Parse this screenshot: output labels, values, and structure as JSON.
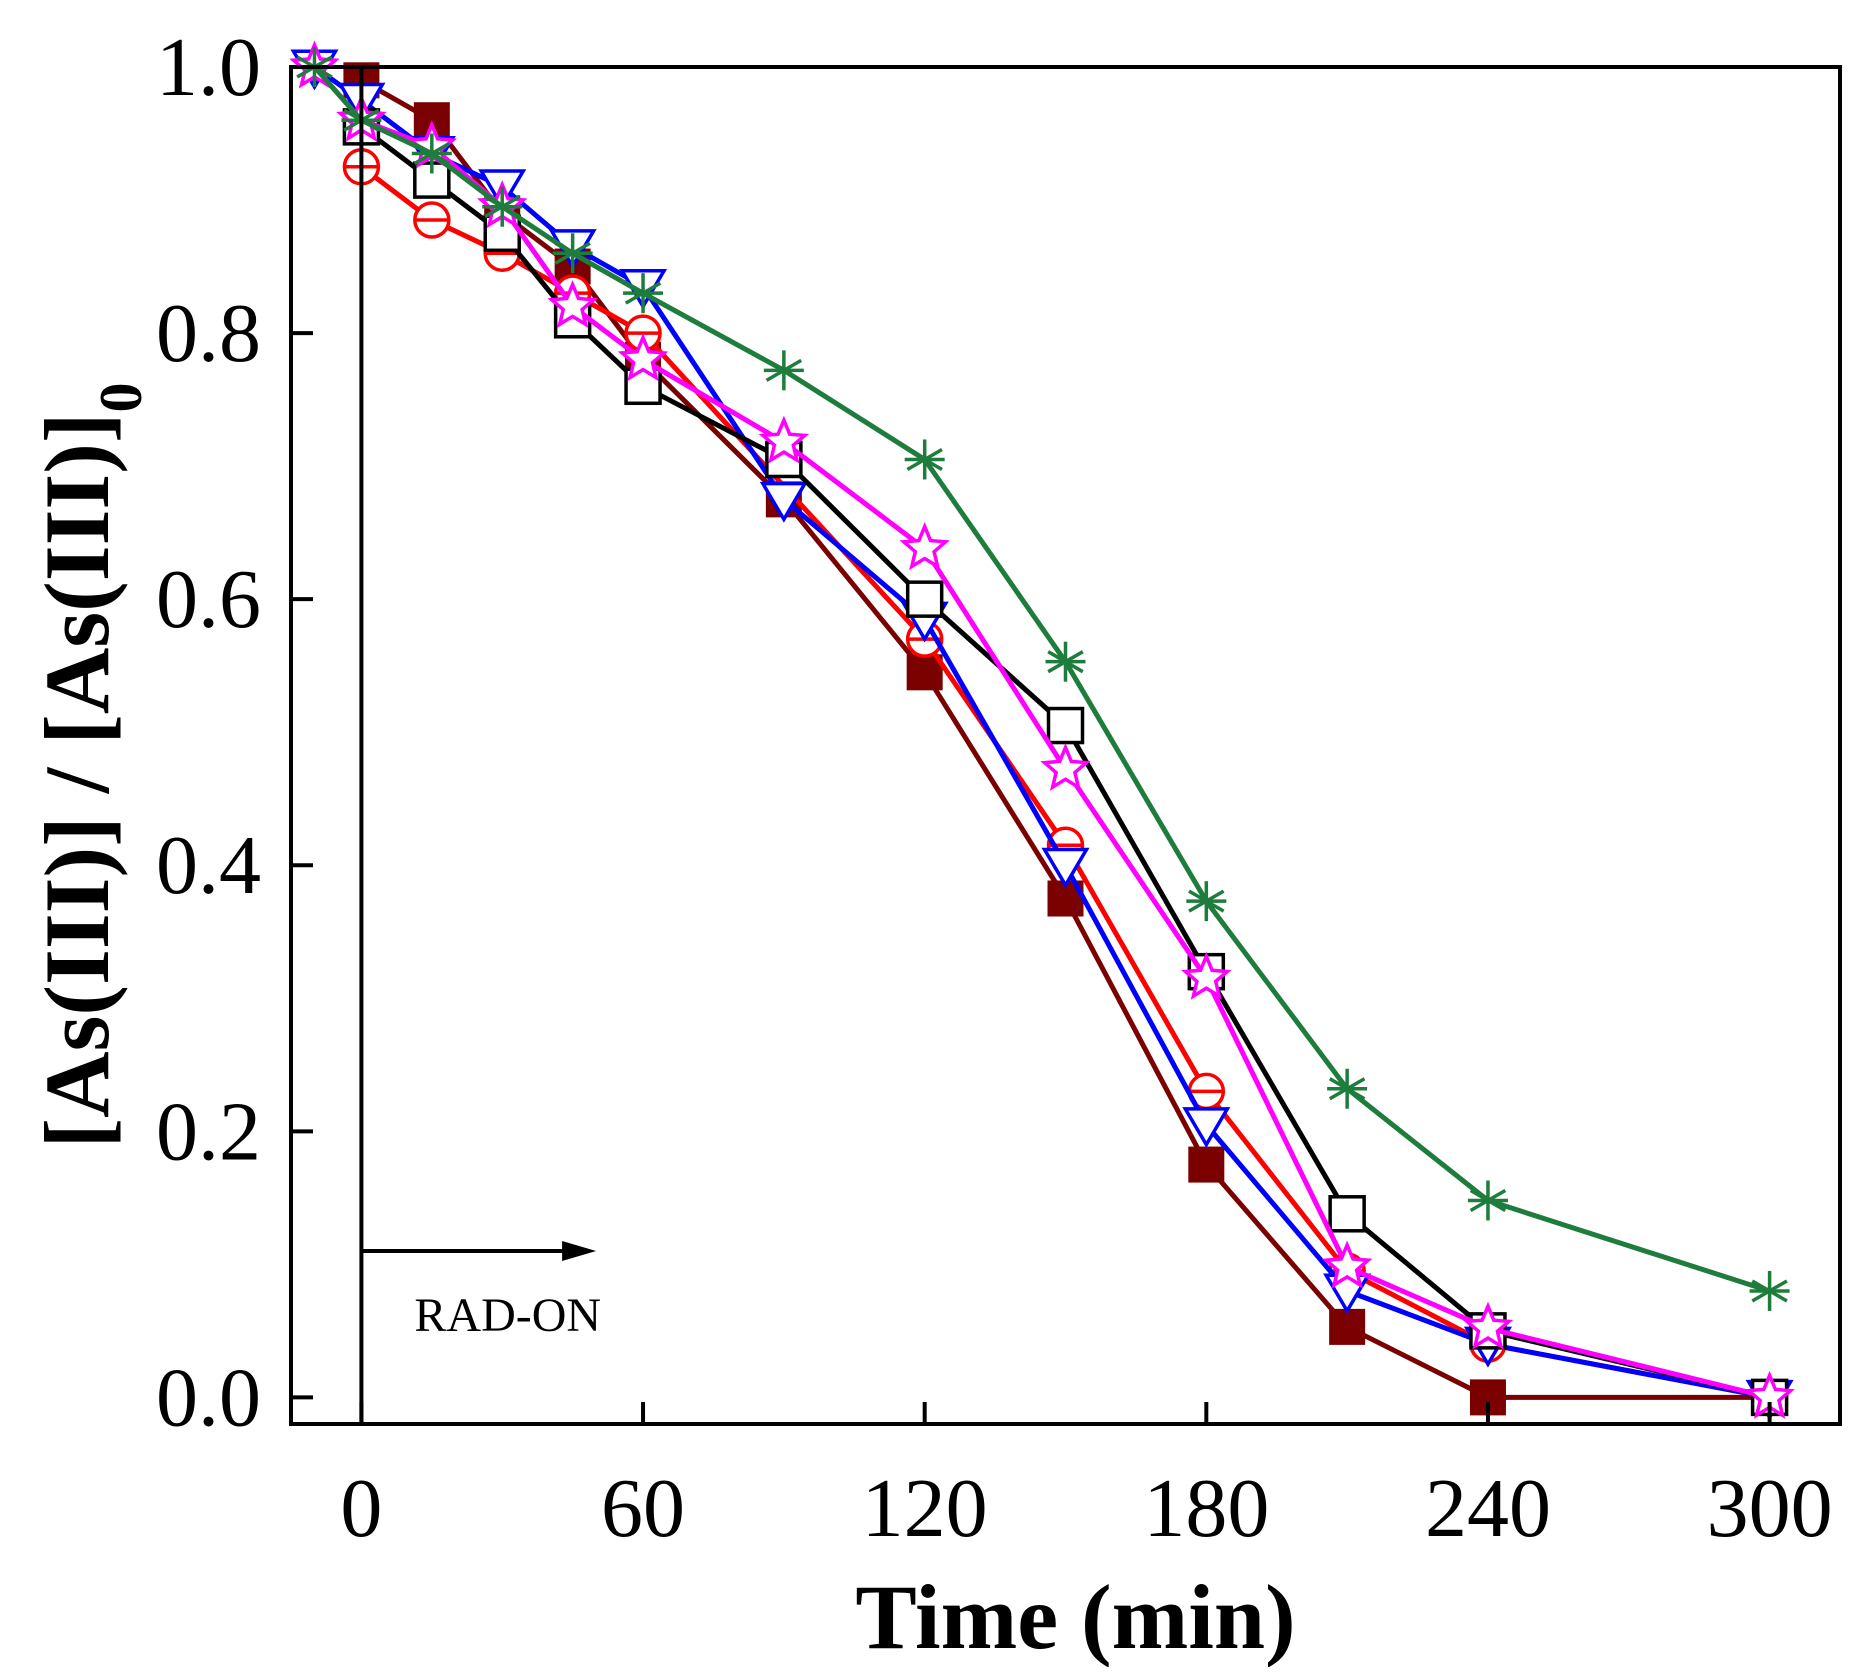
{
  "chart_data": {
    "type": "line",
    "title": "",
    "xlabel": "Time (min)",
    "ylabel_main": "[As(III)] / [As(III)]",
    "ylabel_subscript": "0",
    "xlim": [
      -15,
      315
    ],
    "ylim": [
      -0.02,
      1.0
    ],
    "xticks": [
      0,
      60,
      120,
      180,
      240,
      300
    ],
    "xtick_labels": [
      "0",
      "60",
      "120",
      "180",
      "240",
      "300"
    ],
    "yticks": [
      0.0,
      0.2,
      0.4,
      0.6,
      0.8,
      1.0
    ],
    "ytick_labels": [
      "0.0",
      "0.2",
      "0.4",
      "0.6",
      "0.8",
      "1.0"
    ],
    "grid": false,
    "legend": "none",
    "annotation": {
      "text": "RAD-ON",
      "arrow_from_x": 0,
      "arrow_to_x": 50,
      "arrow_y": 0.11,
      "vertical_line_x": 0
    },
    "series": [
      {
        "name": "filled square (dark red)",
        "color": "#7b0000",
        "marker": "square-filled",
        "x": [
          0,
          15,
          30,
          45,
          60,
          90,
          120,
          150,
          180,
          210,
          240,
          300
        ],
        "values": [
          0.99,
          0.96,
          0.89,
          0.85,
          0.78,
          0.675,
          0.545,
          0.375,
          0.175,
          0.053,
          0.0,
          0.0
        ]
      },
      {
        "name": "open circle (red)",
        "color": "#ff0000",
        "marker": "circle-open-bar",
        "x": [
          0,
          15,
          30,
          45,
          60,
          120,
          150,
          180,
          210,
          240,
          300
        ],
        "values": [
          0.925,
          0.885,
          0.86,
          0.83,
          0.8,
          0.57,
          0.415,
          0.23,
          0.095,
          0.04,
          0.0
        ]
      },
      {
        "name": "open triangle down (blue)",
        "color": "#0000ff",
        "marker": "triangle-down-open",
        "x": [
          -10,
          0,
          15,
          30,
          45,
          60,
          90,
          120,
          150,
          180,
          210,
          240,
          300
        ],
        "values": [
          1.0,
          0.975,
          0.935,
          0.91,
          0.865,
          0.835,
          0.675,
          0.585,
          0.4,
          0.205,
          0.08,
          0.04,
          0.0
        ]
      },
      {
        "name": "open square (black)",
        "color": "#000000",
        "marker": "square-open",
        "x": [
          0,
          15,
          30,
          45,
          60,
          90,
          120,
          150,
          180,
          210,
          240,
          300
        ],
        "values": [
          0.955,
          0.915,
          0.875,
          0.81,
          0.76,
          0.705,
          0.6,
          0.505,
          0.32,
          0.138,
          0.05,
          0.0
        ]
      },
      {
        "name": "open star (magenta)",
        "color": "#ff00ff",
        "marker": "star-open",
        "x": [
          -10,
          0,
          15,
          30,
          45,
          60,
          90,
          120,
          150,
          180,
          210,
          240,
          300
        ],
        "values": [
          1.0,
          0.96,
          0.94,
          0.895,
          0.82,
          0.78,
          0.718,
          0.638,
          0.472,
          0.315,
          0.098,
          0.052,
          0.0
        ]
      },
      {
        "name": "asterisk (green)",
        "color": "#1e7d3c",
        "marker": "asterisk",
        "x": [
          -10,
          0,
          15,
          30,
          45,
          60,
          90,
          120,
          150,
          180,
          210,
          240,
          300
        ],
        "values": [
          1.0,
          0.96,
          0.935,
          0.895,
          0.86,
          0.83,
          0.772,
          0.705,
          0.553,
          0.373,
          0.232,
          0.148,
          0.08
        ]
      }
    ]
  }
}
